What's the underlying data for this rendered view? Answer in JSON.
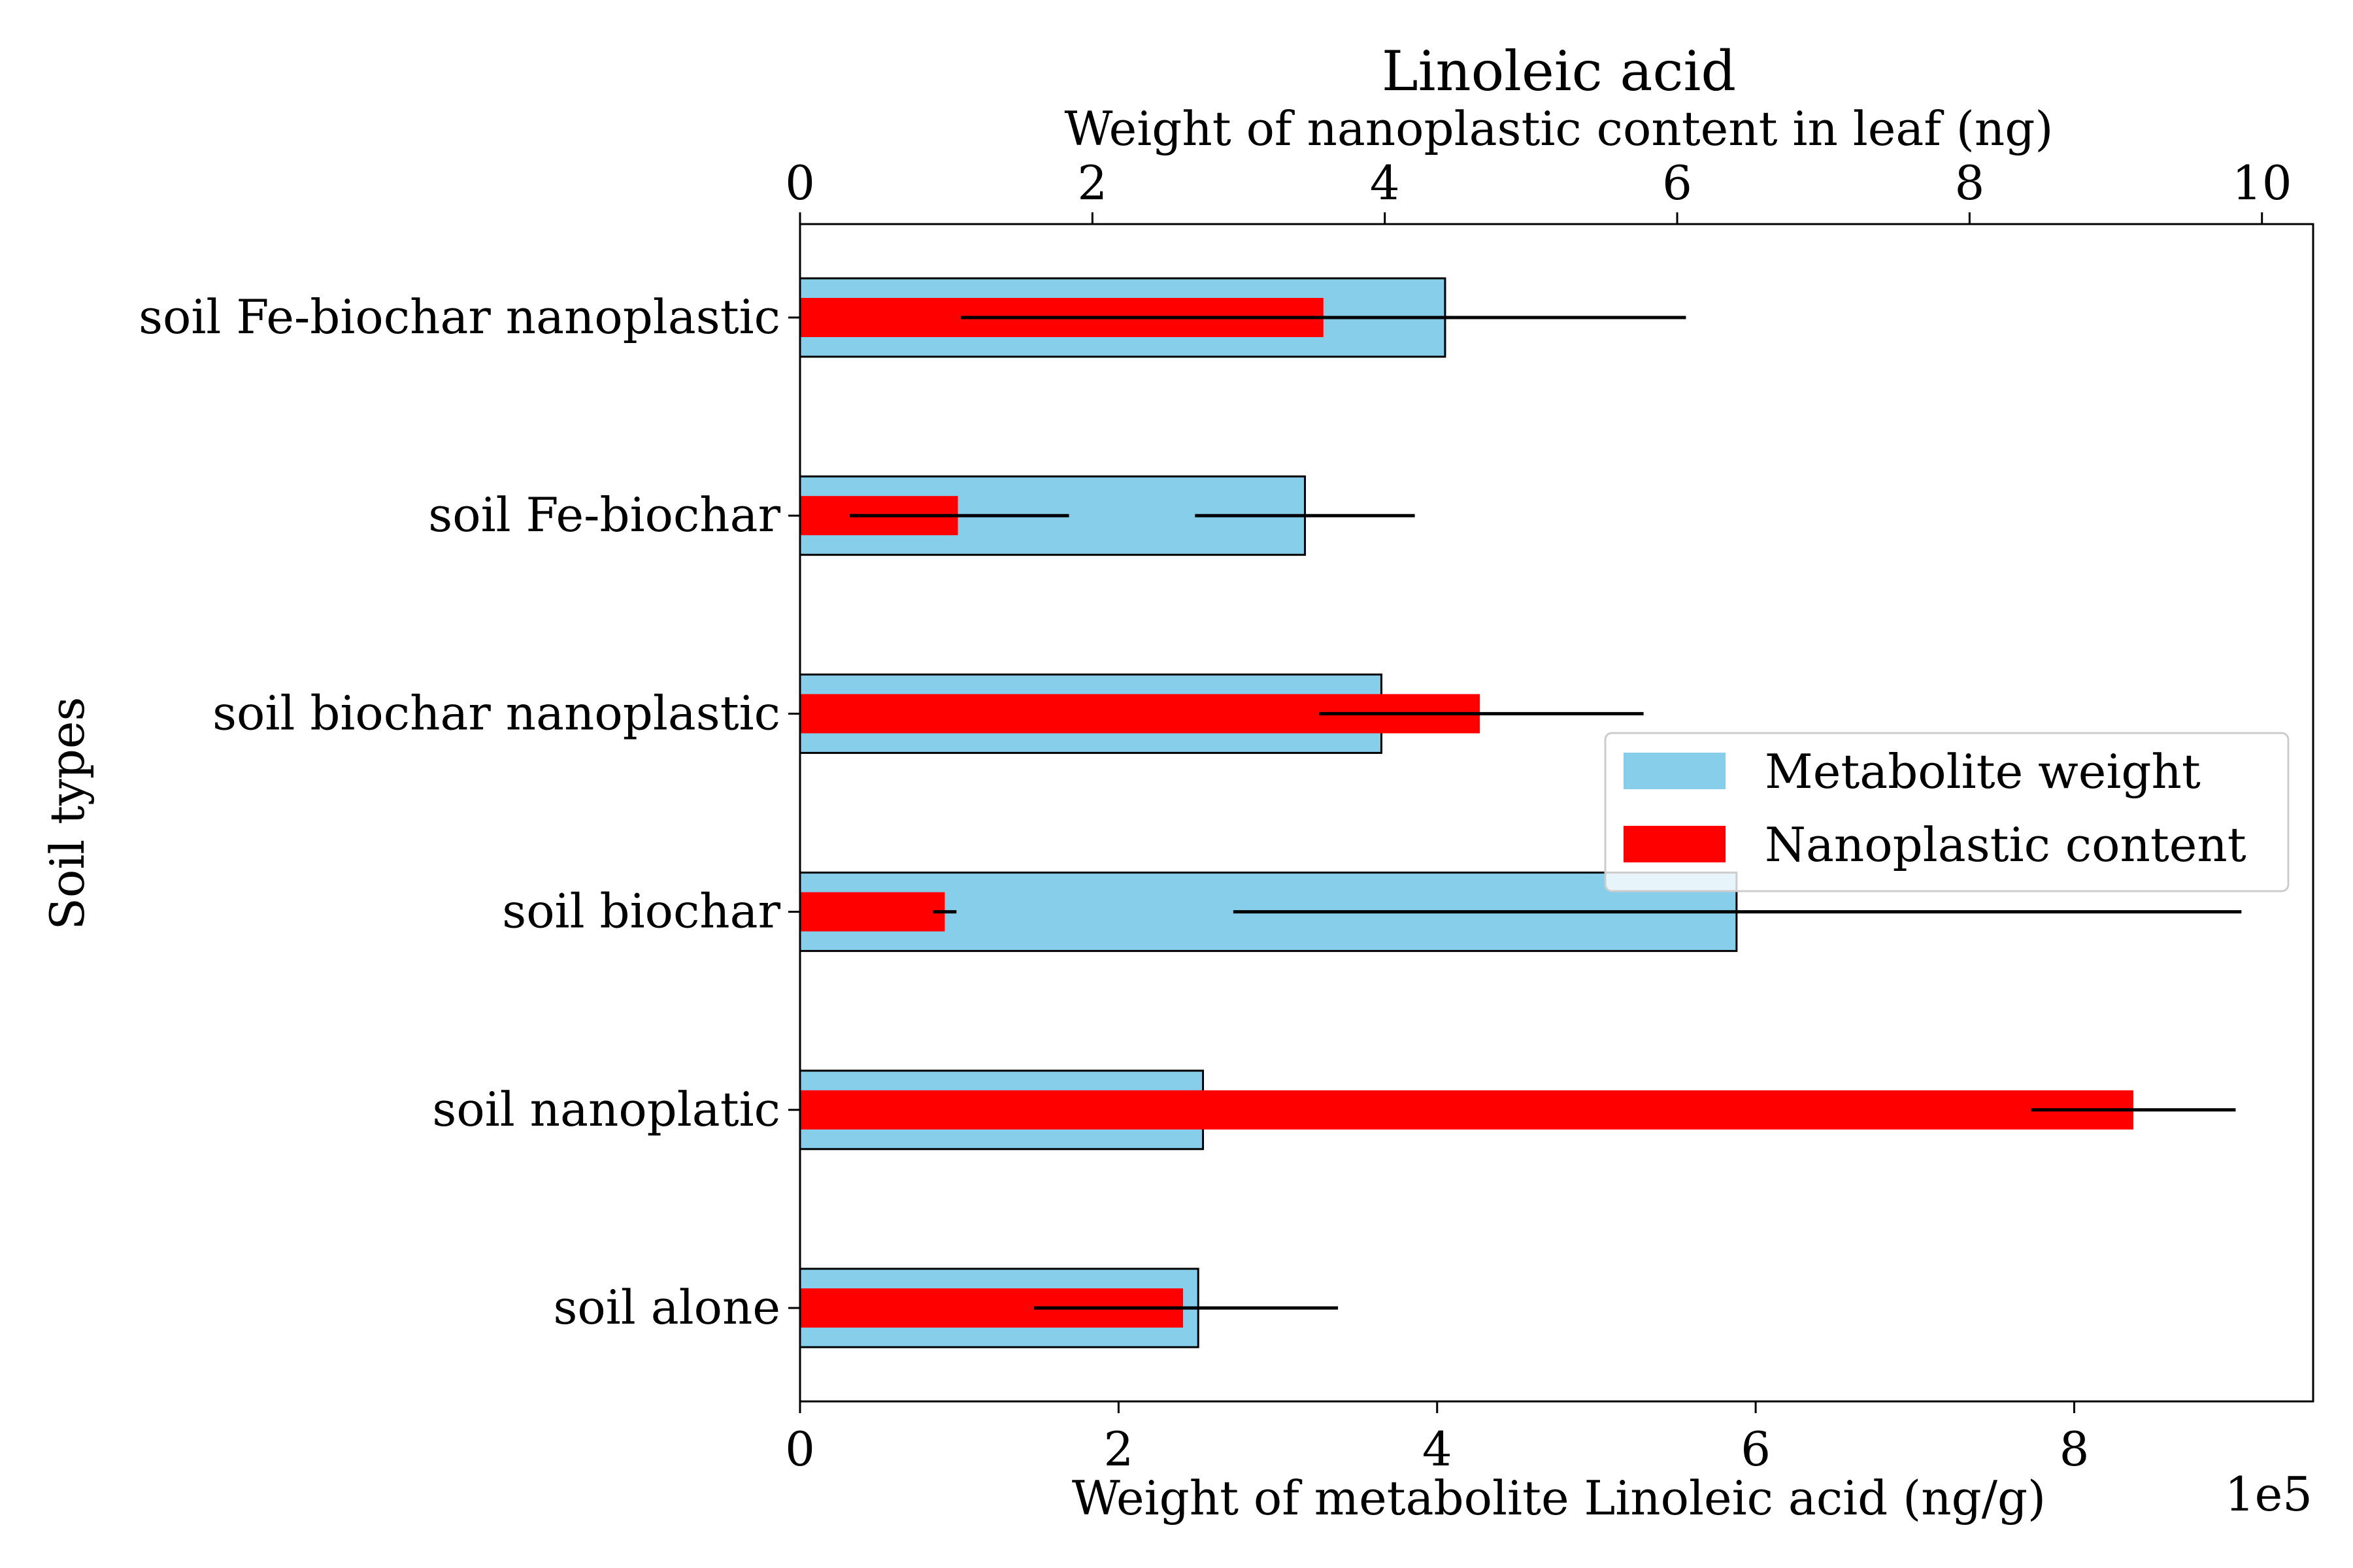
{
  "chart_data": {
    "type": "bar",
    "orientation": "horizontal",
    "title": "Linoleic acid",
    "title_color": "#a52a2a",
    "ylabel": "Soil types",
    "categories": [
      "soil alone",
      "soil nanoplatic",
      "soil biochar",
      "soil biochar nanoplastic",
      "soil Fe-biochar",
      "soil Fe-biochar nanoplastic"
    ],
    "bottom_axis": {
      "label": "Weight of metabolite Linoleic acid (ng/g)",
      "offset_text": "1e5",
      "scale": 100000,
      "lim": [
        0,
        9.5
      ],
      "ticks": [
        0,
        2,
        4,
        6,
        8
      ],
      "tick_labels": [
        "0",
        "2",
        "4",
        "6",
        "8"
      ]
    },
    "top_axis": {
      "label": "Weight of nanoplastic content in leaf (ng)",
      "lim": [
        0,
        10.35
      ],
      "ticks": [
        0,
        2,
        4,
        6,
        8,
        10
      ],
      "tick_labels": [
        "0",
        "2",
        "4",
        "6",
        "8",
        "10"
      ]
    },
    "series": [
      {
        "name": "Metabolite weight",
        "axis": "bottom",
        "color": "#87ceeb",
        "edgecolor": "#000000",
        "values": [
          2.5,
          2.53,
          5.88,
          3.65,
          3.17,
          4.05
        ],
        "error_low": [
          2.5,
          2.53,
          2.72,
          3.65,
          2.48,
          4.05
        ],
        "error_high": [
          2.5,
          2.53,
          9.05,
          3.65,
          3.86,
          4.05
        ]
      },
      {
        "name": "Nanoplastic content",
        "axis": "top",
        "color": "#ff0000",
        "values": [
          2.62,
          9.12,
          0.99,
          4.65,
          1.08,
          3.58
        ],
        "error_low": [
          1.6,
          8.42,
          0.91,
          3.55,
          0.34,
          1.1
        ],
        "error_high": [
          3.68,
          9.82,
          1.07,
          5.77,
          1.84,
          6.06
        ]
      }
    ],
    "legend": {
      "position": "center-right",
      "entries": [
        "Metabolite weight",
        "Nanoplastic content"
      ]
    },
    "grid": false
  }
}
